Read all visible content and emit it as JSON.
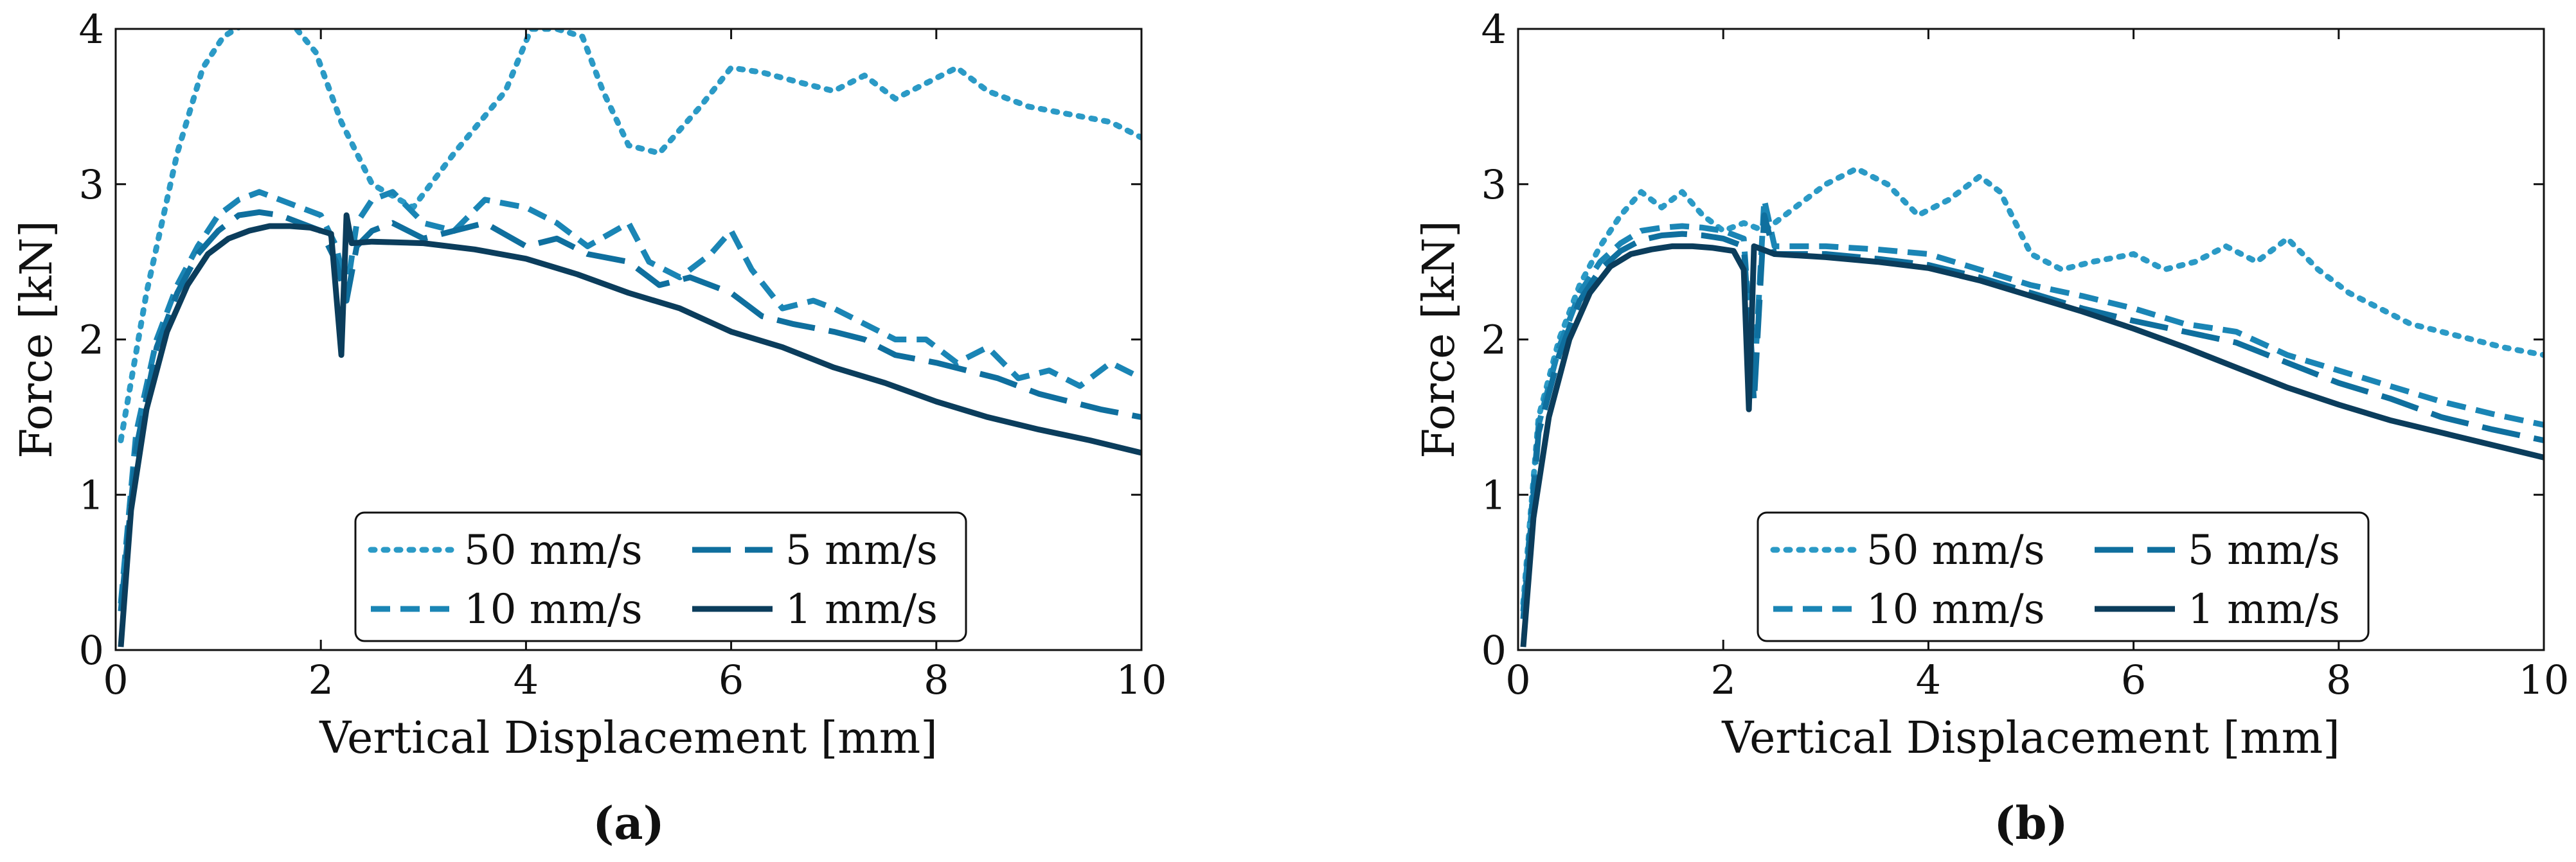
{
  "chart_data": [
    {
      "type": "line",
      "panel_label": "(a)",
      "xlabel": "Vertical Displacement [mm]",
      "ylabel": "Force [kN]",
      "xlim": [
        0,
        10
      ],
      "ylim": [
        0,
        4
      ],
      "xticks": [
        "0",
        "2",
        "4",
        "6",
        "8",
        "10"
      ],
      "yticks": [
        "0",
        "1",
        "2",
        "3",
        "4"
      ],
      "legend": {
        "placement": "bottom-center",
        "columns": 2
      },
      "series": [
        {
          "name": "50 mm/s",
          "color": "#2b9ac6",
          "style": "dotted",
          "x": [
            0.05,
            0.3,
            0.6,
            0.85,
            1.05,
            1.3,
            1.7,
            1.95,
            2.2,
            2.5,
            2.9,
            3.3,
            3.8,
            4.05,
            4.3,
            4.55,
            4.75,
            5.0,
            5.3,
            5.7,
            6.0,
            6.3,
            6.7,
            7.0,
            7.3,
            7.6,
            7.9,
            8.2,
            8.5,
            8.9,
            9.3,
            9.7,
            10.0
          ],
          "y": [
            1.35,
            2.3,
            3.2,
            3.75,
            3.95,
            4.05,
            4.05,
            3.85,
            3.4,
            3.0,
            2.85,
            3.2,
            3.6,
            4.0,
            4.0,
            3.95,
            3.6,
            3.25,
            3.2,
            3.5,
            3.75,
            3.72,
            3.65,
            3.6,
            3.7,
            3.55,
            3.65,
            3.75,
            3.6,
            3.5,
            3.45,
            3.4,
            3.3
          ]
        },
        {
          "name": "10 mm/s",
          "color": "#1a85b5",
          "style": "dashed",
          "x": [
            0.05,
            0.2,
            0.4,
            0.6,
            0.8,
            1.0,
            1.2,
            1.4,
            1.6,
            1.8,
            2.0,
            2.15,
            2.25,
            2.35,
            2.5,
            2.7,
            3.0,
            3.3,
            3.6,
            4.0,
            4.3,
            4.6,
            5.0,
            5.2,
            5.5,
            5.8,
            6.0,
            6.2,
            6.5,
            6.8,
            7.0,
            7.3,
            7.6,
            7.9,
            8.2,
            8.5,
            8.8,
            9.1,
            9.4,
            9.7,
            10.0
          ],
          "y": [
            0.3,
            1.4,
            2.0,
            2.35,
            2.6,
            2.8,
            2.9,
            2.95,
            2.9,
            2.85,
            2.8,
            2.6,
            2.3,
            2.75,
            2.9,
            2.95,
            2.75,
            2.7,
            2.9,
            2.85,
            2.75,
            2.6,
            2.75,
            2.5,
            2.4,
            2.55,
            2.7,
            2.45,
            2.2,
            2.25,
            2.2,
            2.1,
            2.0,
            2.0,
            1.85,
            1.95,
            1.75,
            1.8,
            1.7,
            1.85,
            1.75
          ]
        },
        {
          "name": "5 mm/s",
          "color": "#0f6f9e",
          "style": "longdash",
          "x": [
            0.05,
            0.2,
            0.4,
            0.6,
            0.8,
            1.0,
            1.2,
            1.4,
            1.6,
            1.8,
            2.0,
            2.15,
            2.25,
            2.35,
            2.5,
            2.7,
            3.0,
            3.3,
            3.6,
            4.0,
            4.3,
            4.6,
            5.0,
            5.3,
            5.6,
            6.0,
            6.3,
            6.6,
            7.0,
            7.3,
            7.6,
            8.0,
            8.3,
            8.6,
            9.0,
            9.3,
            9.6,
            10.0
          ],
          "y": [
            0.25,
            1.3,
            1.95,
            2.3,
            2.55,
            2.7,
            2.8,
            2.82,
            2.8,
            2.75,
            2.7,
            2.5,
            2.25,
            2.6,
            2.7,
            2.75,
            2.65,
            2.7,
            2.75,
            2.6,
            2.65,
            2.55,
            2.5,
            2.35,
            2.4,
            2.3,
            2.15,
            2.1,
            2.05,
            2.0,
            1.9,
            1.85,
            1.8,
            1.75,
            1.65,
            1.6,
            1.55,
            1.5
          ]
        },
        {
          "name": "1 mm/s",
          "color": "#0b3d5c",
          "style": "solid",
          "x": [
            0.05,
            0.15,
            0.3,
            0.5,
            0.7,
            0.9,
            1.1,
            1.3,
            1.5,
            1.7,
            1.9,
            2.1,
            2.2,
            2.25,
            2.3,
            2.5,
            3.0,
            3.5,
            4.0,
            4.5,
            5.0,
            5.5,
            6.0,
            6.5,
            7.0,
            7.5,
            8.0,
            8.5,
            9.0,
            9.5,
            10.0
          ],
          "y": [
            0.02,
            0.9,
            1.55,
            2.05,
            2.35,
            2.55,
            2.65,
            2.7,
            2.73,
            2.73,
            2.72,
            2.68,
            1.9,
            2.8,
            2.62,
            2.63,
            2.62,
            2.58,
            2.52,
            2.42,
            2.3,
            2.2,
            2.05,
            1.95,
            1.82,
            1.72,
            1.6,
            1.5,
            1.42,
            1.35,
            1.27
          ]
        }
      ]
    },
    {
      "type": "line",
      "panel_label": "(b)",
      "xlabel": "Vertical Displacement [mm]",
      "ylabel": "Force [kN]",
      "xlim": [
        0,
        10
      ],
      "ylim": [
        0,
        4
      ],
      "xticks": [
        "0",
        "2",
        "4",
        "6",
        "8",
        "10"
      ],
      "yticks": [
        "0",
        "1",
        "2",
        "3",
        "4"
      ],
      "legend": {
        "placement": "bottom-center",
        "columns": 2
      },
      "series": [
        {
          "name": "50 mm/s",
          "color": "#2b9ac6",
          "style": "dotted",
          "x": [
            0.05,
            0.2,
            0.4,
            0.6,
            0.8,
            1.0,
            1.2,
            1.4,
            1.6,
            1.8,
            2.0,
            2.2,
            2.4,
            2.6,
            2.8,
            3.0,
            3.3,
            3.6,
            3.9,
            4.2,
            4.5,
            4.7,
            5.0,
            5.3,
            5.6,
            6.0,
            6.3,
            6.6,
            6.9,
            7.2,
            7.5,
            7.8,
            8.1,
            8.4,
            8.7,
            9.0,
            9.3,
            9.6,
            10.0
          ],
          "y": [
            0.3,
            1.5,
            2.0,
            2.35,
            2.6,
            2.8,
            2.95,
            2.85,
            2.95,
            2.8,
            2.7,
            2.75,
            2.7,
            2.8,
            2.9,
            3.0,
            3.1,
            3.0,
            2.8,
            2.9,
            3.05,
            2.95,
            2.55,
            2.45,
            2.5,
            2.55,
            2.45,
            2.5,
            2.6,
            2.5,
            2.65,
            2.45,
            2.3,
            2.2,
            2.1,
            2.05,
            2.0,
            1.95,
            1.9
          ]
        },
        {
          "name": "10 mm/s",
          "color": "#1a85b5",
          "style": "dashed",
          "x": [
            0.05,
            0.2,
            0.4,
            0.6,
            0.8,
            1.0,
            1.2,
            1.4,
            1.6,
            1.8,
            2.0,
            2.2,
            2.3,
            2.4,
            2.5,
            3.0,
            3.5,
            4.0,
            4.5,
            5.0,
            5.5,
            6.0,
            6.5,
            7.0,
            7.5,
            8.0,
            8.5,
            9.0,
            9.5,
            10.0
          ],
          "y": [
            0.25,
            1.45,
            1.95,
            2.3,
            2.5,
            2.62,
            2.7,
            2.72,
            2.73,
            2.72,
            2.7,
            2.65,
            1.7,
            2.9,
            2.6,
            2.6,
            2.58,
            2.55,
            2.45,
            2.35,
            2.28,
            2.2,
            2.1,
            2.05,
            1.9,
            1.8,
            1.7,
            1.6,
            1.52,
            1.45
          ]
        },
        {
          "name": "5 mm/s",
          "color": "#0f6f9e",
          "style": "longdash",
          "x": [
            0.05,
            0.2,
            0.4,
            0.6,
            0.8,
            1.0,
            1.2,
            1.4,
            1.6,
            1.8,
            2.0,
            2.2,
            2.3,
            2.4,
            2.5,
            3.0,
            3.5,
            4.0,
            4.5,
            5.0,
            5.5,
            6.0,
            6.5,
            7.0,
            7.5,
            8.0,
            8.5,
            9.0,
            9.5,
            10.0
          ],
          "y": [
            0.2,
            1.4,
            1.9,
            2.25,
            2.45,
            2.57,
            2.64,
            2.67,
            2.68,
            2.67,
            2.65,
            2.6,
            1.6,
            2.8,
            2.55,
            2.55,
            2.52,
            2.48,
            2.4,
            2.3,
            2.2,
            2.12,
            2.05,
            1.98,
            1.85,
            1.72,
            1.62,
            1.5,
            1.42,
            1.35
          ]
        },
        {
          "name": "1 mm/s",
          "color": "#0b3d5c",
          "style": "solid",
          "x": [
            0.05,
            0.15,
            0.3,
            0.5,
            0.7,
            0.9,
            1.1,
            1.3,
            1.5,
            1.7,
            1.9,
            2.1,
            2.2,
            2.25,
            2.3,
            2.5,
            3.0,
            3.5,
            4.0,
            4.5,
            5.0,
            5.5,
            6.0,
            6.5,
            7.0,
            7.5,
            8.0,
            8.5,
            9.0,
            9.5,
            10.0
          ],
          "y": [
            0.02,
            0.85,
            1.5,
            2.0,
            2.3,
            2.47,
            2.55,
            2.58,
            2.6,
            2.6,
            2.59,
            2.57,
            2.45,
            1.55,
            2.6,
            2.55,
            2.53,
            2.5,
            2.46,
            2.38,
            2.28,
            2.18,
            2.07,
            1.95,
            1.82,
            1.69,
            1.58,
            1.48,
            1.4,
            1.32,
            1.24
          ]
        }
      ]
    }
  ]
}
